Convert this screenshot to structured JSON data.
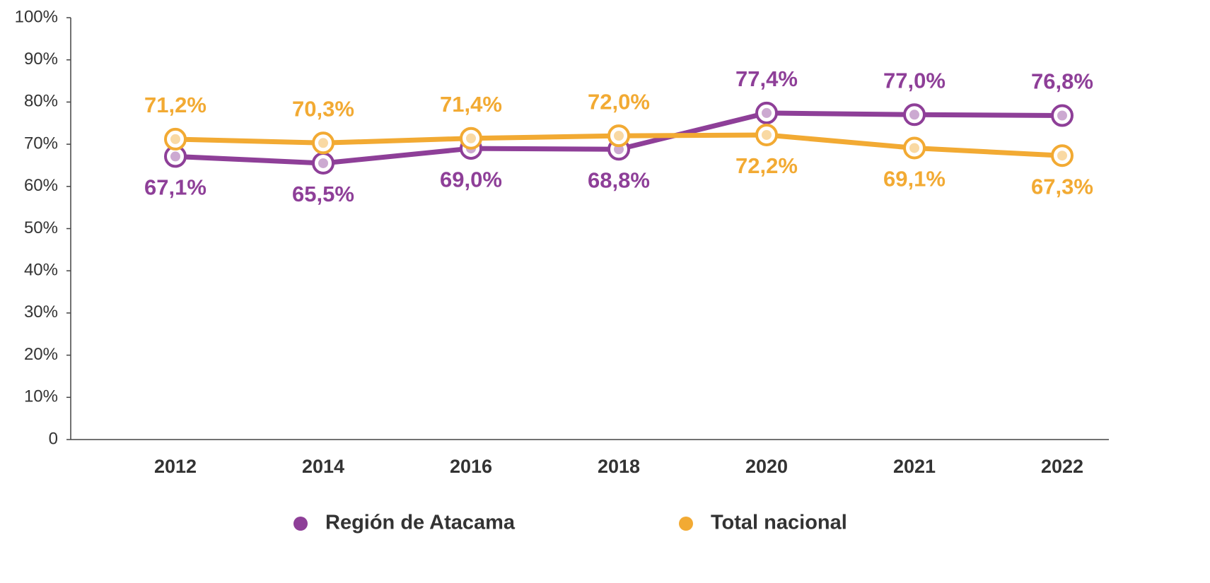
{
  "chart_data": {
    "type": "line",
    "categories": [
      "2012",
      "2014",
      "2016",
      "2018",
      "2020",
      "2021",
      "2022"
    ],
    "series": [
      {
        "name": "Región de Atacama",
        "color": "#8e3f98",
        "values": [
          67.1,
          65.5,
          69.0,
          68.8,
          77.4,
          77.0,
          76.8
        ],
        "value_labels": [
          "67,1%",
          "65,5%",
          "69,0%",
          "68,8%",
          "77,4%",
          "77,0%",
          "76,8%"
        ]
      },
      {
        "name": "Total nacional",
        "color": "#f2aa33",
        "values": [
          71.2,
          70.3,
          71.4,
          72.0,
          72.2,
          69.1,
          67.3
        ],
        "value_labels": [
          "71,2%",
          "70,3%",
          "71,4%",
          "72,0%",
          "72,2%",
          "69,1%",
          "67,3%"
        ]
      }
    ],
    "ylim": [
      0,
      100
    ],
    "yticks": [
      0,
      {
        "value": 10,
        "label": "10%"
      },
      {
        "value": 20,
        "label": "20%"
      },
      {
        "value": 30,
        "label": "30%"
      },
      {
        "value": 40,
        "label": "40%"
      },
      {
        "value": 50,
        "label": "50%"
      },
      {
        "value": 60,
        "label": "60%"
      },
      {
        "value": 70,
        "label": "70%"
      },
      {
        "value": 80,
        "label": "80%"
      },
      {
        "value": 90,
        "label": "90%"
      },
      {
        "value": 100,
        "label": "100%"
      }
    ],
    "legend": "bottom"
  }
}
